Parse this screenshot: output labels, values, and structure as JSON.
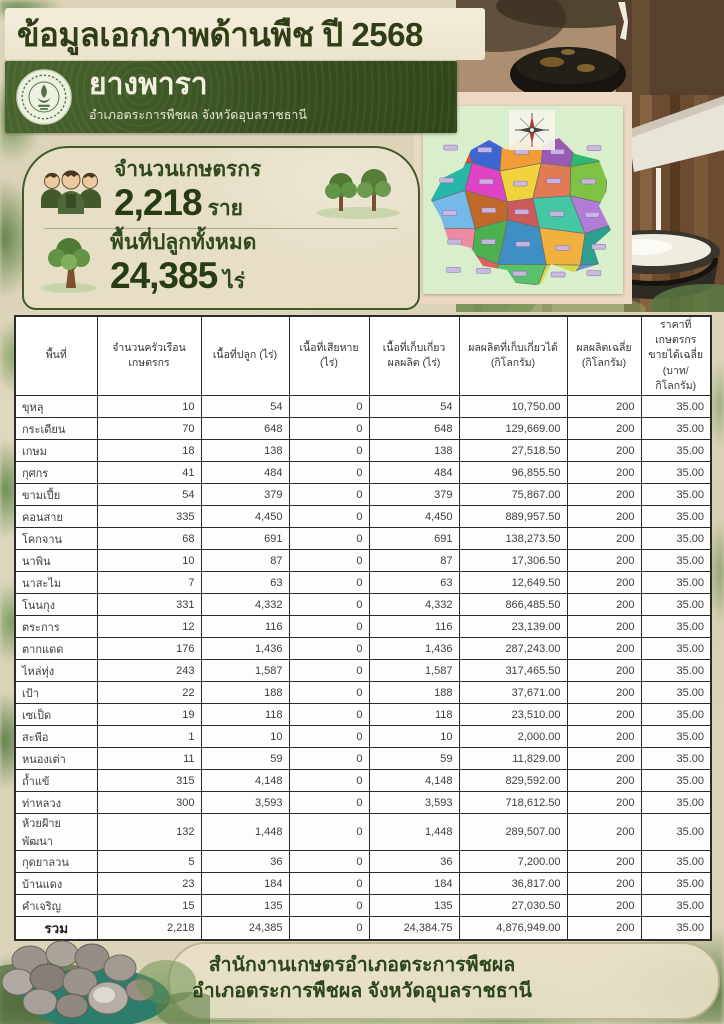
{
  "page": {
    "title": "ข้อมูลเอกภาพด้านพืช ปี 2568"
  },
  "banner": {
    "crop_name": "ยางพารา",
    "subtitle": "อำเภอตระการพืชผล จังหวัดอุบลราชธานี"
  },
  "stats": [
    {
      "icon": "farmers-icon",
      "label": "จำนวนเกษตรกร",
      "value": "2,218",
      "unit": "ราย"
    },
    {
      "icon": "tree-icon",
      "label": "พื้นที่ปลูกทั้งหมด",
      "value": "24,385",
      "unit": "ไร่"
    }
  ],
  "table": {
    "headers": [
      "พื้นที่",
      "จำนวนครัวเรือน\nเกษตรกร",
      "เนื้อที่ปลูก (ไร่)",
      "เนื้อที่เสียหาย (ไร่)",
      "เนื้อที่เก็บเกี่ยว\nผลผลิต (ไร่)",
      "ผลผลิตที่เก็บเกี่ยวได้\n(กิโลกรัม)",
      "ผลผลิตเฉลี่ย\n(กิโลกรัม)",
      "ราคาที่เกษตรกร\nขายได้เฉลี่ย\n(บาท/กิโลกรัม)"
    ],
    "rows": [
      [
        "ขุหลุ",
        "10",
        "54",
        "0",
        "54",
        "10,750.00",
        "200",
        "35.00"
      ],
      [
        "กระเดียน",
        "70",
        "648",
        "0",
        "648",
        "129,669.00",
        "200",
        "35.00"
      ],
      [
        "เกษม",
        "18",
        "138",
        "0",
        "138",
        "27,518.50",
        "200",
        "35.00"
      ],
      [
        "กุศกร",
        "41",
        "484",
        "0",
        "484",
        "96,855.50",
        "200",
        "35.00"
      ],
      [
        "ขามเปี้ย",
        "54",
        "379",
        "0",
        "379",
        "75,867.00",
        "200",
        "35.00"
      ],
      [
        "คอนสาย",
        "335",
        "4,450",
        "0",
        "4,450",
        "889,957.50",
        "200",
        "35.00"
      ],
      [
        "โคกจาน",
        "68",
        "691",
        "0",
        "691",
        "138,273.50",
        "200",
        "35.00"
      ],
      [
        "นาพิน",
        "10",
        "87",
        "0",
        "87",
        "17,306.50",
        "200",
        "35.00"
      ],
      [
        "นาสะไม",
        "7",
        "63",
        "0",
        "63",
        "12,649.50",
        "200",
        "35.00"
      ],
      [
        "โนนกุง",
        "331",
        "4,332",
        "0",
        "4,332",
        "866,485.50",
        "200",
        "35.00"
      ],
      [
        "ตระการ",
        "12",
        "116",
        "0",
        "116",
        "23,139.00",
        "200",
        "35.00"
      ],
      [
        "ตากแดด",
        "176",
        "1,436",
        "0",
        "1,436",
        "287,243.00",
        "200",
        "35.00"
      ],
      [
        "ไหล่ทุ่ง",
        "243",
        "1,587",
        "0",
        "1,587",
        "317,465.50",
        "200",
        "35.00"
      ],
      [
        "เป้า",
        "22",
        "188",
        "0",
        "188",
        "37,671.00",
        "200",
        "35.00"
      ],
      [
        "เซเป็ด",
        "19",
        "118",
        "0",
        "118",
        "23,510.00",
        "200",
        "35.00"
      ],
      [
        "สะพือ",
        "1",
        "10",
        "0",
        "10",
        "2,000.00",
        "200",
        "35.00"
      ],
      [
        "หนองเต่า",
        "11",
        "59",
        "0",
        "59",
        "11,829.00",
        "200",
        "35.00"
      ],
      [
        "ถ้ำแข้",
        "315",
        "4,148",
        "0",
        "4,148",
        "829,592.00",
        "200",
        "35.00"
      ],
      [
        "ท่าหลวง",
        "300",
        "3,593",
        "0",
        "3,593",
        "718,612.50",
        "200",
        "35.00"
      ],
      [
        "ห้วยฝ้ายพัฒนา",
        "132",
        "1,448",
        "0",
        "1,448",
        "289,507.00",
        "200",
        "35.00"
      ],
      [
        "กุดยาลวน",
        "5",
        "36",
        "0",
        "36",
        "7,200.00",
        "200",
        "35.00"
      ],
      [
        "บ้านแดง",
        "23",
        "184",
        "0",
        "184",
        "36,817.00",
        "200",
        "35.00"
      ],
      [
        "คำเจริญ",
        "15",
        "135",
        "0",
        "135",
        "27,030.50",
        "200",
        "35.00"
      ]
    ],
    "total_row": [
      "รวม",
      "2,218",
      "24,385",
      "0",
      "24,384.75",
      "4,876,949.00",
      "200",
      "35.00"
    ]
  },
  "footer": {
    "line1": "สำนักงานเกษตรอำเภอตระการพืชผล",
    "line2": "อำเภอตระการพืชผล จังหวัดอุบลราชธานี"
  },
  "map": {
    "region_colors": [
      "#d94f3b",
      "#3b66d4",
      "#f29c38",
      "#9b59b6",
      "#2eb872",
      "#27b6a7",
      "#e044c4",
      "#f2d33c",
      "#e07b54",
      "#7dc242",
      "#74b9e8",
      "#c0692b",
      "#cd5a5a",
      "#45c7a6",
      "#b07cd8",
      "#ef8ba0",
      "#4caf50",
      "#3f8fc4",
      "#f0b13f",
      "#2e9e8f",
      "#8e6fc0",
      "#e06060",
      "#59c06c",
      "#d8d84a",
      "#6a8fe0"
    ]
  },
  "colors": {
    "title_color": "#2f3e16",
    "banner_green": "#374f20",
    "map_bg": "#d9eecb",
    "table_border": "#2b2b2b",
    "footer_text": "#2c451c"
  }
}
